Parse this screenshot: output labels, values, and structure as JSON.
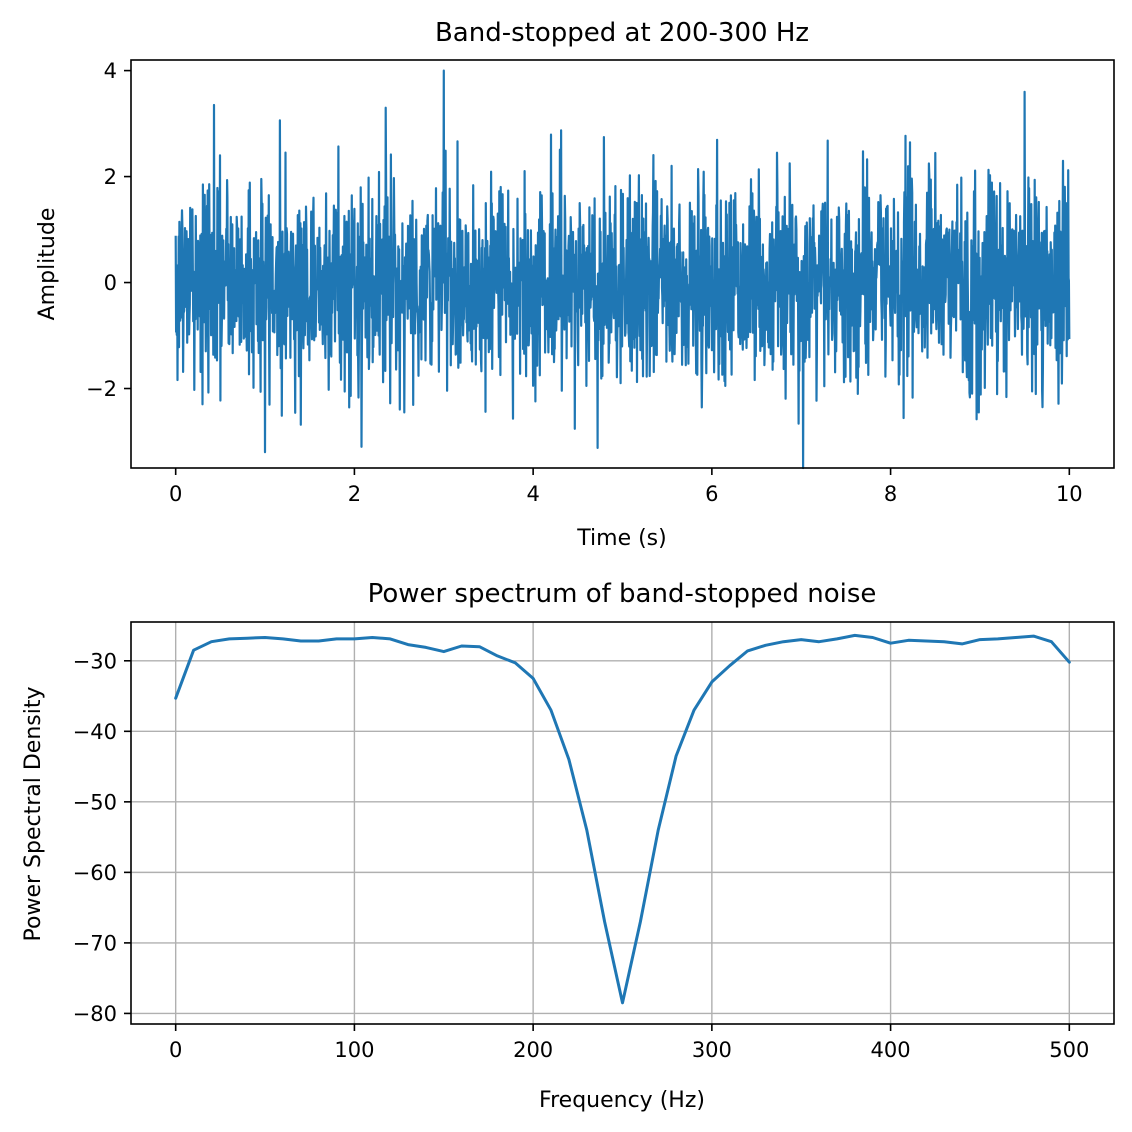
{
  "chart_data": [
    {
      "type": "line",
      "title": "Band-stopped at 200-300 Hz",
      "xlabel": "Time (s)",
      "ylabel": "Amplitude",
      "xlim": [
        -0.5,
        10.5
      ],
      "ylim": [
        -3.5,
        4.2
      ],
      "xticks": [
        0,
        2,
        4,
        6,
        8,
        10
      ],
      "xtick_labels": [
        "0",
        "2",
        "4",
        "6",
        "8",
        "10"
      ],
      "yticks": [
        -2,
        0,
        2,
        4
      ],
      "ytick_labels": [
        "−2",
        "0",
        "2",
        "4"
      ],
      "grid": false,
      "color": "#1f77b4",
      "signal": {
        "t_start": 0,
        "t_end": 10,
        "typical_range": [
          -1.9,
          1.9
        ],
        "min": -3.5,
        "max": 4.0,
        "peaks": [
          {
            "t": 3.0,
            "y": 4.0
          },
          {
            "t": 9.5,
            "y": 3.6
          },
          {
            "t": 0.43,
            "y": 3.35
          },
          {
            "t": 2.35,
            "y": 3.3
          },
          {
            "t": 7.02,
            "y": -3.5
          },
          {
            "t": 1.0,
            "y": -3.2
          },
          {
            "t": 2.08,
            "y": -3.1
          }
        ]
      }
    },
    {
      "type": "line",
      "title": "Power spectrum of band-stopped noise",
      "xlabel": "Frequency (Hz)",
      "ylabel": "Power Spectral Density",
      "xlim": [
        -25,
        525
      ],
      "ylim": [
        -81.5,
        -24.5
      ],
      "xticks": [
        0,
        100,
        200,
        300,
        400,
        500
      ],
      "xtick_labels": [
        "0",
        "100",
        "200",
        "300",
        "400",
        "500"
      ],
      "yticks": [
        -80,
        -70,
        -60,
        -50,
        -40,
        -30
      ],
      "ytick_labels": [
        "−80",
        "−70",
        "−60",
        "−50",
        "−40",
        "−30"
      ],
      "grid": true,
      "color": "#1f77b4",
      "series": [
        {
          "x": [
            0,
            10,
            20,
            30,
            40,
            50,
            60,
            70,
            80,
            90,
            100,
            110,
            120,
            130,
            140,
            150,
            160,
            170,
            180,
            190,
            200,
            210,
            220,
            230,
            240,
            250,
            260,
            270,
            280,
            290,
            300,
            310,
            320,
            330,
            340,
            350,
            360,
            370,
            380,
            390,
            400,
            410,
            420,
            430,
            440,
            450,
            460,
            470,
            480,
            490,
            500
          ],
          "values": [
            -35.3,
            -28.5,
            -27.3,
            -26.9,
            -26.8,
            -26.7,
            -26.9,
            -27.2,
            -27.2,
            -26.9,
            -26.9,
            -26.7,
            -26.9,
            -27.7,
            -28.1,
            -28.7,
            -27.9,
            -28.0,
            -29.3,
            -30.3,
            -32.5,
            -37.0,
            -44.0,
            -54.0,
            -67.0,
            -78.5,
            -67.0,
            -54.0,
            -43.5,
            -37.0,
            -33.0,
            -30.7,
            -28.6,
            -27.8,
            -27.3,
            -27.0,
            -27.3,
            -26.9,
            -26.4,
            -26.7,
            -27.5,
            -27.1,
            -27.2,
            -27.3,
            -27.6,
            -27.0,
            -26.9,
            -26.7,
            -26.5,
            -27.3,
            -30.2
          ]
        }
      ]
    }
  ]
}
